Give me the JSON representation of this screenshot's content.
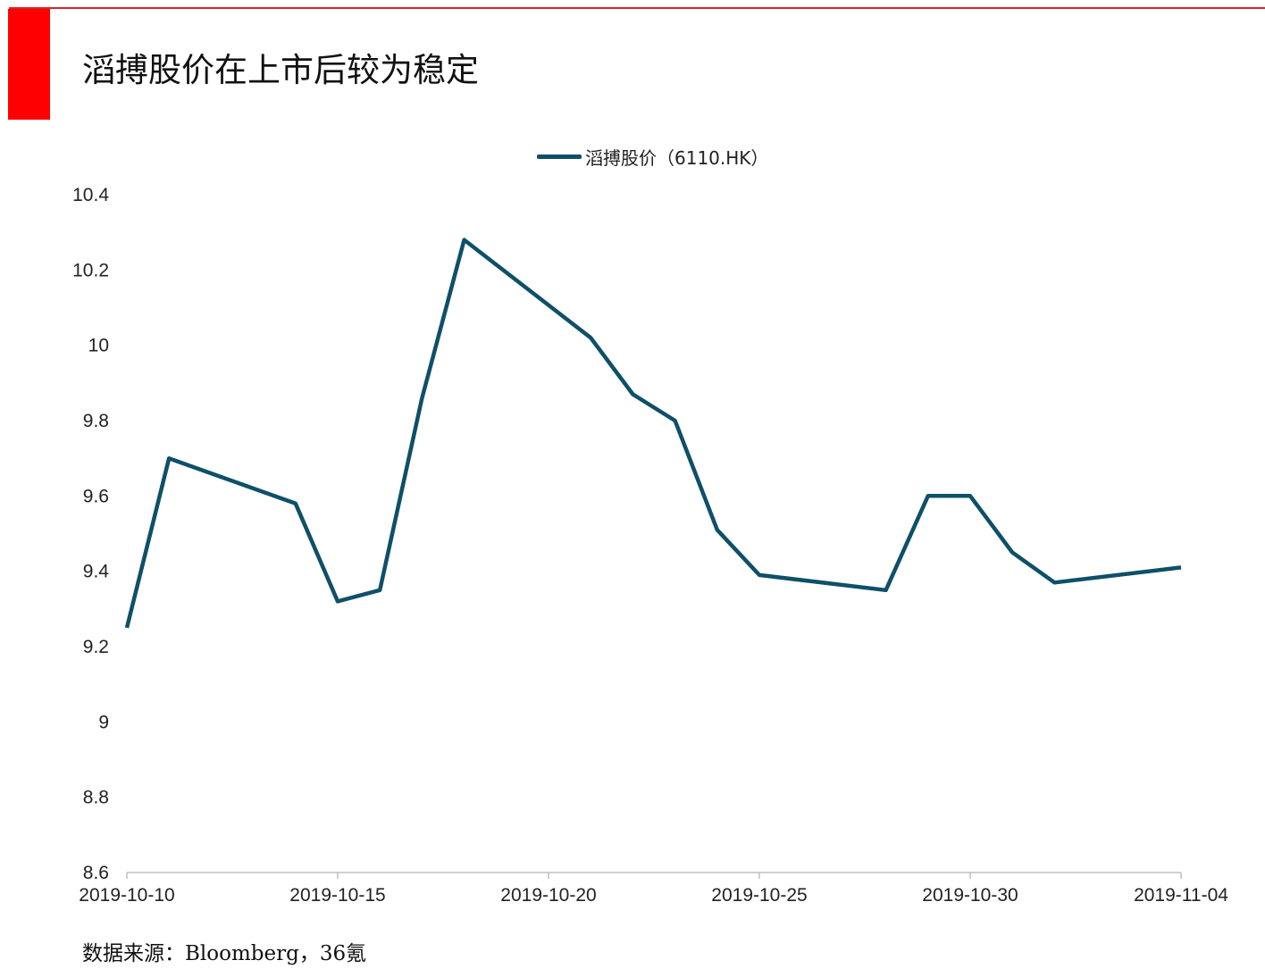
{
  "page": {
    "title": "滔搏股价在上市后较为稳定",
    "source": "数据来源：Bloomberg，36氪"
  },
  "colors": {
    "accent_red": "#ff0000",
    "rule_red": "#d9232a",
    "series": "#0e5068"
  },
  "chart_data": {
    "type": "line",
    "title": "",
    "xlabel": "",
    "ylabel": "",
    "legend_position": "top-center",
    "grid": false,
    "ylim": [
      8.6,
      10.4
    ],
    "y_ticks": [
      8.6,
      8.8,
      9,
      9.2,
      9.4,
      9.6,
      9.8,
      10,
      10.2,
      10.4
    ],
    "y_tick_labels": [
      "8.6",
      "8.8",
      "9",
      "9.2",
      "9.4",
      "9.6",
      "9.8",
      "10",
      "10.2",
      "10.4"
    ],
    "xlim": [
      "2019-10-10",
      "2019-11-04"
    ],
    "x_ticks": [
      "2019-10-10",
      "2019-10-15",
      "2019-10-20",
      "2019-10-25",
      "2019-10-30",
      "2019-11-04"
    ],
    "series": [
      {
        "name": "滔搏股价（6110.HK）",
        "points": [
          {
            "x": "2019-10-10",
            "y": 9.25
          },
          {
            "x": "2019-10-11",
            "y": 9.7
          },
          {
            "x": "2019-10-14",
            "y": 9.58
          },
          {
            "x": "2019-10-15",
            "y": 9.32
          },
          {
            "x": "2019-10-16",
            "y": 9.35
          },
          {
            "x": "2019-10-17",
            "y": 9.86
          },
          {
            "x": "2019-10-18",
            "y": 10.28
          },
          {
            "x": "2019-10-21",
            "y": 10.02
          },
          {
            "x": "2019-10-22",
            "y": 9.87
          },
          {
            "x": "2019-10-23",
            "y": 9.8
          },
          {
            "x": "2019-10-24",
            "y": 9.51
          },
          {
            "x": "2019-10-25",
            "y": 9.39
          },
          {
            "x": "2019-10-28",
            "y": 9.35
          },
          {
            "x": "2019-10-29",
            "y": 9.6
          },
          {
            "x": "2019-10-30",
            "y": 9.6
          },
          {
            "x": "2019-10-31",
            "y": 9.45
          },
          {
            "x": "2019-11-01",
            "y": 9.37
          },
          {
            "x": "2019-11-04",
            "y": 9.41
          }
        ]
      }
    ]
  }
}
